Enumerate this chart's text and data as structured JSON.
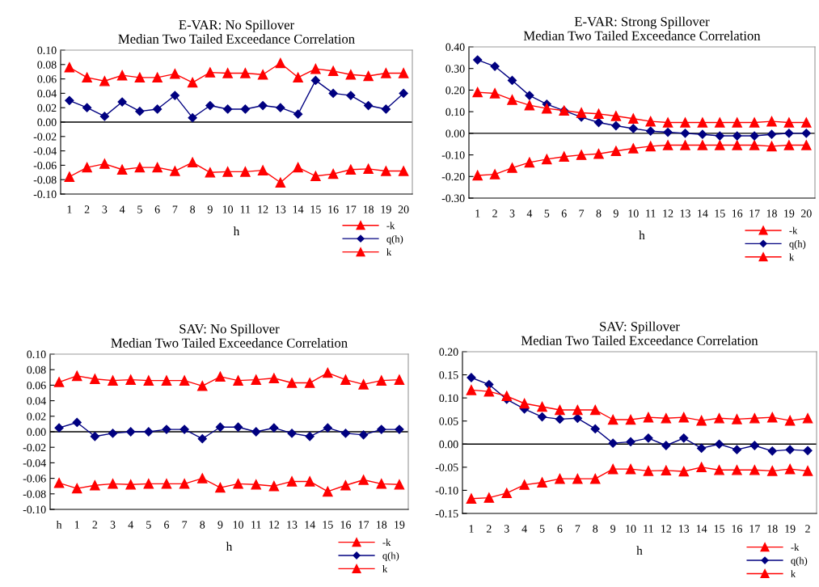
{
  "chart_data": [
    {
      "type": "line",
      "title": "E-VAR: No Spillover\nMedian Two Tailed Exceedance Correlation",
      "xlabel": "h",
      "categories": [
        "1",
        "2",
        "3",
        "4",
        "5",
        "6",
        "7",
        "8",
        "9",
        "10",
        "11",
        "12",
        "13",
        "14",
        "15",
        "16",
        "17",
        "18",
        "19",
        "20"
      ],
      "ylim": [
        -0.1,
        0.1
      ],
      "yticks": [
        {
          "value": -0.1,
          "label": "-0.10"
        },
        {
          "value": -0.08,
          "label": "-0.08"
        },
        {
          "value": -0.06,
          "label": "-0.06"
        },
        {
          "value": -0.04,
          "label": "-0.04"
        },
        {
          "value": -0.02,
          "label": "-0.02"
        },
        {
          "value": 0,
          "label": "0.00"
        },
        {
          "value": 0.02,
          "label": "0.02"
        },
        {
          "value": 0.04,
          "label": "0.04"
        },
        {
          "value": 0.06,
          "label": "0.06"
        },
        {
          "value": 0.08,
          "label": "0.08"
        },
        {
          "value": 0.1,
          "label": "0.10"
        }
      ],
      "grid": false,
      "legend": "bottom right",
      "ref_lines": [
        {
          "axis": "y",
          "value": 0,
          "color": "#000000"
        }
      ],
      "series": [
        {
          "name": "-k",
          "color": "#ff0000",
          "marker": "triangle",
          "values": [
            -0.076,
            -0.063,
            -0.058,
            -0.066,
            -0.063,
            -0.063,
            -0.068,
            -0.056,
            -0.07,
            -0.069,
            -0.069,
            -0.067,
            -0.084,
            -0.063,
            -0.075,
            -0.072,
            -0.066,
            -0.065,
            -0.068,
            -0.068
          ]
        },
        {
          "name": "q(h)",
          "color": "#000080",
          "marker": "diamond",
          "values": [
            0.03,
            0.02,
            0.008,
            0.028,
            0.015,
            0.018,
            0.037,
            0.006,
            0.023,
            0.018,
            0.018,
            0.023,
            0.02,
            0.011,
            0.058,
            0.04,
            0.037,
            0.023,
            0.018,
            0.04
          ]
        },
        {
          "name": "k",
          "color": "#ff0000",
          "marker": "triangle",
          "values": [
            0.076,
            0.062,
            0.057,
            0.065,
            0.062,
            0.062,
            0.067,
            0.055,
            0.069,
            0.068,
            0.068,
            0.066,
            0.082,
            0.062,
            0.074,
            0.071,
            0.066,
            0.064,
            0.068,
            0.068
          ]
        }
      ]
    },
    {
      "type": "line",
      "title": "E-VAR: Strong Spillover\nMedian Two Tailed Exceedance Correlation",
      "xlabel": "h",
      "categories": [
        "1",
        "2",
        "3",
        "4",
        "5",
        "6",
        "7",
        "8",
        "9",
        "10",
        "11",
        "12",
        "13",
        "14",
        "15",
        "16",
        "17",
        "18",
        "19",
        "20"
      ],
      "ylim": [
        -0.3,
        0.4
      ],
      "yticks": [
        {
          "value": -0.3,
          "label": "-0.30"
        },
        {
          "value": -0.2,
          "label": "-0.20"
        },
        {
          "value": -0.1,
          "label": "-0.10"
        },
        {
          "value": 0,
          "label": "0.00"
        },
        {
          "value": 0.1,
          "label": "0.10"
        },
        {
          "value": 0.2,
          "label": "0.20"
        },
        {
          "value": 0.3,
          "label": "0.30"
        },
        {
          "value": 0.4,
          "label": "0.40"
        }
      ],
      "grid": false,
      "legend": "bottom right",
      "ref_lines": [
        {
          "axis": "y",
          "value": 0,
          "color": "#000000"
        }
      ],
      "series": [
        {
          "name": "-k",
          "color": "#ff0000",
          "marker": "triangle",
          "values": [
            -0.195,
            -0.19,
            -0.16,
            -0.135,
            -0.12,
            -0.108,
            -0.1,
            -0.095,
            -0.082,
            -0.07,
            -0.06,
            -0.055,
            -0.055,
            -0.055,
            -0.055,
            -0.055,
            -0.055,
            -0.06,
            -0.055,
            -0.055
          ]
        },
        {
          "name": "q(h)",
          "color": "#000080",
          "marker": "diamond",
          "values": [
            0.34,
            0.31,
            0.245,
            0.175,
            0.135,
            0.105,
            0.075,
            0.05,
            0.035,
            0.022,
            0.01,
            0.005,
            0,
            -0.005,
            -0.012,
            -0.012,
            -0.012,
            -0.005,
            0,
            0
          ]
        },
        {
          "name": "k",
          "color": "#ff0000",
          "marker": "triangle",
          "values": [
            0.19,
            0.185,
            0.155,
            0.13,
            0.115,
            0.105,
            0.095,
            0.09,
            0.08,
            0.068,
            0.055,
            0.05,
            0.05,
            0.05,
            0.05,
            0.05,
            0.05,
            0.055,
            0.05,
            0.05
          ]
        }
      ]
    },
    {
      "type": "line",
      "title": "SAV: No Spillover\nMedian Two Tailed Exceedance Correlation",
      "xlabel": "h",
      "categories": [
        "h",
        "1",
        "2",
        "3",
        "4",
        "5",
        "6",
        "7",
        "8",
        "9",
        "10",
        "11",
        "12",
        "13",
        "14",
        "15",
        "16",
        "17",
        "18",
        "19"
      ],
      "ylim": [
        -0.1,
        0.1
      ],
      "yticks": [
        {
          "value": -0.1,
          "label": "-0.10"
        },
        {
          "value": -0.08,
          "label": "-0.08"
        },
        {
          "value": -0.06,
          "label": "-0.06"
        },
        {
          "value": -0.04,
          "label": "-0.04"
        },
        {
          "value": -0.02,
          "label": "-0.02"
        },
        {
          "value": 0,
          "label": "0.00"
        },
        {
          "value": 0.02,
          "label": "0.02"
        },
        {
          "value": 0.04,
          "label": "0.04"
        },
        {
          "value": 0.06,
          "label": "0.06"
        },
        {
          "value": 0.08,
          "label": "0.08"
        },
        {
          "value": 0.1,
          "label": "0.10"
        }
      ],
      "grid": false,
      "legend": "bottom right",
      "ref_lines": [
        {
          "axis": "y",
          "value": 0,
          "color": "#000000"
        }
      ],
      "series": [
        {
          "name": "-k",
          "color": "#ff0000",
          "marker": "triangle",
          "values": [
            -0.066,
            -0.073,
            -0.069,
            -0.067,
            -0.068,
            -0.067,
            -0.067,
            -0.067,
            -0.06,
            -0.072,
            -0.067,
            -0.068,
            -0.07,
            -0.064,
            -0.064,
            -0.077,
            -0.069,
            -0.062,
            -0.067,
            -0.068
          ]
        },
        {
          "name": "q(h)",
          "color": "#000080",
          "marker": "diamond",
          "values": [
            0.005,
            0.012,
            -0.006,
            -0.002,
            0,
            0,
            0.003,
            0.003,
            -0.009,
            0.006,
            0.006,
            0,
            0.005,
            -0.002,
            -0.006,
            0.005,
            -0.002,
            -0.004,
            0.003,
            0.003
          ]
        },
        {
          "name": "k",
          "color": "#ff0000",
          "marker": "triangle",
          "values": [
            0.064,
            0.072,
            0.068,
            0.066,
            0.067,
            0.066,
            0.066,
            0.066,
            0.059,
            0.071,
            0.066,
            0.067,
            0.069,
            0.063,
            0.063,
            0.076,
            0.067,
            0.061,
            0.066,
            0.067
          ]
        }
      ]
    },
    {
      "type": "line",
      "title": "SAV: Spillover\nMedian Two Tailed Exceedance Correlation",
      "xlabel": "h",
      "categories": [
        "1",
        "2",
        "3",
        "4",
        "5",
        "6",
        "7",
        "8",
        "9",
        "10",
        "11",
        "12",
        "13",
        "14",
        "15",
        "16",
        "17",
        "18",
        "19",
        "2"
      ],
      "ylim": [
        -0.15,
        0.2
      ],
      "yticks": [
        {
          "value": -0.15,
          "label": "-0.15"
        },
        {
          "value": -0.1,
          "label": "-0.10"
        },
        {
          "value": -0.05,
          "label": "-0.05"
        },
        {
          "value": 0,
          "label": "0.00"
        },
        {
          "value": 0.05,
          "label": "0.05"
        },
        {
          "value": 0.1,
          "label": "0.10"
        },
        {
          "value": 0.15,
          "label": "0.15"
        },
        {
          "value": 0.2,
          "label": "0.20"
        }
      ],
      "grid": false,
      "legend": "bottom right",
      "ref_lines": [
        {
          "axis": "y",
          "value": 0,
          "color": "#000000"
        }
      ],
      "series": [
        {
          "name": "-k",
          "color": "#ff0000",
          "marker": "triangle",
          "values": [
            -0.118,
            -0.116,
            -0.106,
            -0.088,
            -0.083,
            -0.075,
            -0.075,
            -0.075,
            -0.054,
            -0.054,
            -0.058,
            -0.057,
            -0.059,
            -0.05,
            -0.056,
            -0.056,
            -0.056,
            -0.058,
            -0.054,
            -0.058
          ]
        },
        {
          "name": "q(h)",
          "color": "#000080",
          "marker": "diamond",
          "values": [
            0.144,
            0.129,
            0.097,
            0.076,
            0.059,
            0.054,
            0.056,
            0.033,
            0.002,
            0.005,
            0.013,
            -0.003,
            0.013,
            -0.009,
            0,
            -0.012,
            -0.003,
            -0.015,
            -0.012,
            -0.014
          ]
        },
        {
          "name": "k",
          "color": "#ff0000",
          "marker": "triangle",
          "values": [
            0.117,
            0.114,
            0.104,
            0.088,
            0.081,
            0.074,
            0.074,
            0.074,
            0.053,
            0.053,
            0.058,
            0.056,
            0.058,
            0.051,
            0.056,
            0.054,
            0.056,
            0.058,
            0.051,
            0.056
          ]
        }
      ]
    }
  ]
}
